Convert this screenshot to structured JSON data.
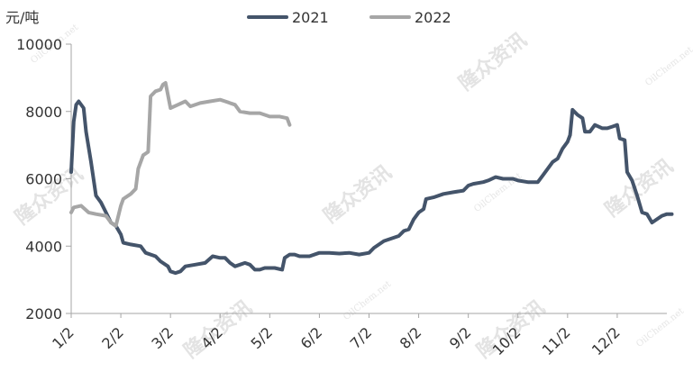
{
  "chart_data": {
    "type": "line",
    "y_unit": "元/吨",
    "ylim": [
      2000,
      10000
    ],
    "y_ticks": [
      2000,
      4000,
      6000,
      8000,
      10000
    ],
    "x_range": [
      0,
      12
    ],
    "x_ticks": [
      {
        "label": "1/2",
        "x": 0
      },
      {
        "label": "2/2",
        "x": 1
      },
      {
        "label": "3/2",
        "x": 2
      },
      {
        "label": "4/2",
        "x": 3
      },
      {
        "label": "5/2",
        "x": 4
      },
      {
        "label": "6/2",
        "x": 5
      },
      {
        "label": "7/2",
        "x": 6
      },
      {
        "label": "8/2",
        "x": 7
      },
      {
        "label": "9/2",
        "x": 8
      },
      {
        "label": "10/2",
        "x": 9
      },
      {
        "label": "11/2",
        "x": 10
      },
      {
        "label": "12/2",
        "x": 11
      }
    ],
    "grid": false,
    "legend_position": "top",
    "series": [
      {
        "name": "2021",
        "color": "#44546a",
        "points": [
          [
            0.0,
            6200
          ],
          [
            0.05,
            7700
          ],
          [
            0.1,
            8200
          ],
          [
            0.15,
            8300
          ],
          [
            0.25,
            8100
          ],
          [
            0.3,
            7400
          ],
          [
            0.4,
            6500
          ],
          [
            0.5,
            5500
          ],
          [
            0.6,
            5300
          ],
          [
            0.7,
            5000
          ],
          [
            0.8,
            4700
          ],
          [
            0.9,
            4600
          ],
          [
            1.0,
            4350
          ],
          [
            1.05,
            4100
          ],
          [
            1.2,
            4050
          ],
          [
            1.4,
            4000
          ],
          [
            1.5,
            3800
          ],
          [
            1.7,
            3700
          ],
          [
            1.8,
            3550
          ],
          [
            1.95,
            3400
          ],
          [
            2.0,
            3250
          ],
          [
            2.1,
            3200
          ],
          [
            2.2,
            3250
          ],
          [
            2.3,
            3400
          ],
          [
            2.5,
            3450
          ],
          [
            2.7,
            3500
          ],
          [
            2.85,
            3700
          ],
          [
            3.0,
            3650
          ],
          [
            3.1,
            3650
          ],
          [
            3.2,
            3500
          ],
          [
            3.3,
            3400
          ],
          [
            3.4,
            3450
          ],
          [
            3.5,
            3500
          ],
          [
            3.6,
            3450
          ],
          [
            3.7,
            3300
          ],
          [
            3.8,
            3300
          ],
          [
            3.9,
            3350
          ],
          [
            4.0,
            3350
          ],
          [
            4.1,
            3350
          ],
          [
            4.25,
            3300
          ],
          [
            4.3,
            3650
          ],
          [
            4.4,
            3750
          ],
          [
            4.5,
            3750
          ],
          [
            4.6,
            3700
          ],
          [
            4.8,
            3700
          ],
          [
            5.0,
            3800
          ],
          [
            5.2,
            3800
          ],
          [
            5.4,
            3780
          ],
          [
            5.6,
            3800
          ],
          [
            5.8,
            3750
          ],
          [
            6.0,
            3800
          ],
          [
            6.1,
            3950
          ],
          [
            6.3,
            4150
          ],
          [
            6.5,
            4250
          ],
          [
            6.6,
            4300
          ],
          [
            6.7,
            4450
          ],
          [
            6.8,
            4500
          ],
          [
            6.9,
            4800
          ],
          [
            7.0,
            5000
          ],
          [
            7.1,
            5100
          ],
          [
            7.15,
            5400
          ],
          [
            7.3,
            5450
          ],
          [
            7.5,
            5550
          ],
          [
            7.7,
            5600
          ],
          [
            7.9,
            5650
          ],
          [
            8.0,
            5800
          ],
          [
            8.1,
            5850
          ],
          [
            8.3,
            5900
          ],
          [
            8.4,
            5950
          ],
          [
            8.55,
            6050
          ],
          [
            8.7,
            6000
          ],
          [
            8.9,
            6000
          ],
          [
            9.0,
            5950
          ],
          [
            9.2,
            5900
          ],
          [
            9.4,
            5900
          ],
          [
            9.5,
            6100
          ],
          [
            9.6,
            6300
          ],
          [
            9.7,
            6500
          ],
          [
            9.8,
            6600
          ],
          [
            9.9,
            6900
          ],
          [
            10.0,
            7100
          ],
          [
            10.05,
            7300
          ],
          [
            10.1,
            8050
          ],
          [
            10.2,
            7900
          ],
          [
            10.3,
            7800
          ],
          [
            10.35,
            7400
          ],
          [
            10.45,
            7400
          ],
          [
            10.55,
            7600
          ],
          [
            10.7,
            7500
          ],
          [
            10.8,
            7500
          ],
          [
            10.9,
            7550
          ],
          [
            11.0,
            7600
          ],
          [
            11.05,
            7200
          ],
          [
            11.15,
            7150
          ],
          [
            11.2,
            6200
          ],
          [
            11.3,
            5950
          ],
          [
            11.4,
            5500
          ],
          [
            11.5,
            5000
          ],
          [
            11.6,
            4950
          ],
          [
            11.7,
            4700
          ],
          [
            11.8,
            4800
          ],
          [
            11.9,
            4900
          ],
          [
            12.0,
            4950
          ],
          [
            12.1,
            4950
          ]
        ]
      },
      {
        "name": "2022",
        "color": "#a6a6a6",
        "points": [
          [
            0.0,
            5000
          ],
          [
            0.05,
            5150
          ],
          [
            0.2,
            5200
          ],
          [
            0.35,
            5000
          ],
          [
            0.5,
            4950
          ],
          [
            0.7,
            4900
          ],
          [
            0.8,
            4700
          ],
          [
            0.9,
            4600
          ],
          [
            1.0,
            5200
          ],
          [
            1.05,
            5400
          ],
          [
            1.2,
            5550
          ],
          [
            1.3,
            5700
          ],
          [
            1.35,
            6300
          ],
          [
            1.45,
            6700
          ],
          [
            1.55,
            6800
          ],
          [
            1.6,
            8450
          ],
          [
            1.7,
            8600
          ],
          [
            1.8,
            8650
          ],
          [
            1.85,
            8800
          ],
          [
            1.9,
            8850
          ],
          [
            2.0,
            8100
          ],
          [
            2.15,
            8200
          ],
          [
            2.3,
            8300
          ],
          [
            2.4,
            8150
          ],
          [
            2.6,
            8250
          ],
          [
            2.8,
            8300
          ],
          [
            3.0,
            8350
          ],
          [
            3.1,
            8300
          ],
          [
            3.3,
            8200
          ],
          [
            3.4,
            8000
          ],
          [
            3.6,
            7950
          ],
          [
            3.8,
            7950
          ],
          [
            4.0,
            7850
          ],
          [
            4.2,
            7850
          ],
          [
            4.35,
            7800
          ],
          [
            4.4,
            7600
          ]
        ]
      }
    ]
  }
}
